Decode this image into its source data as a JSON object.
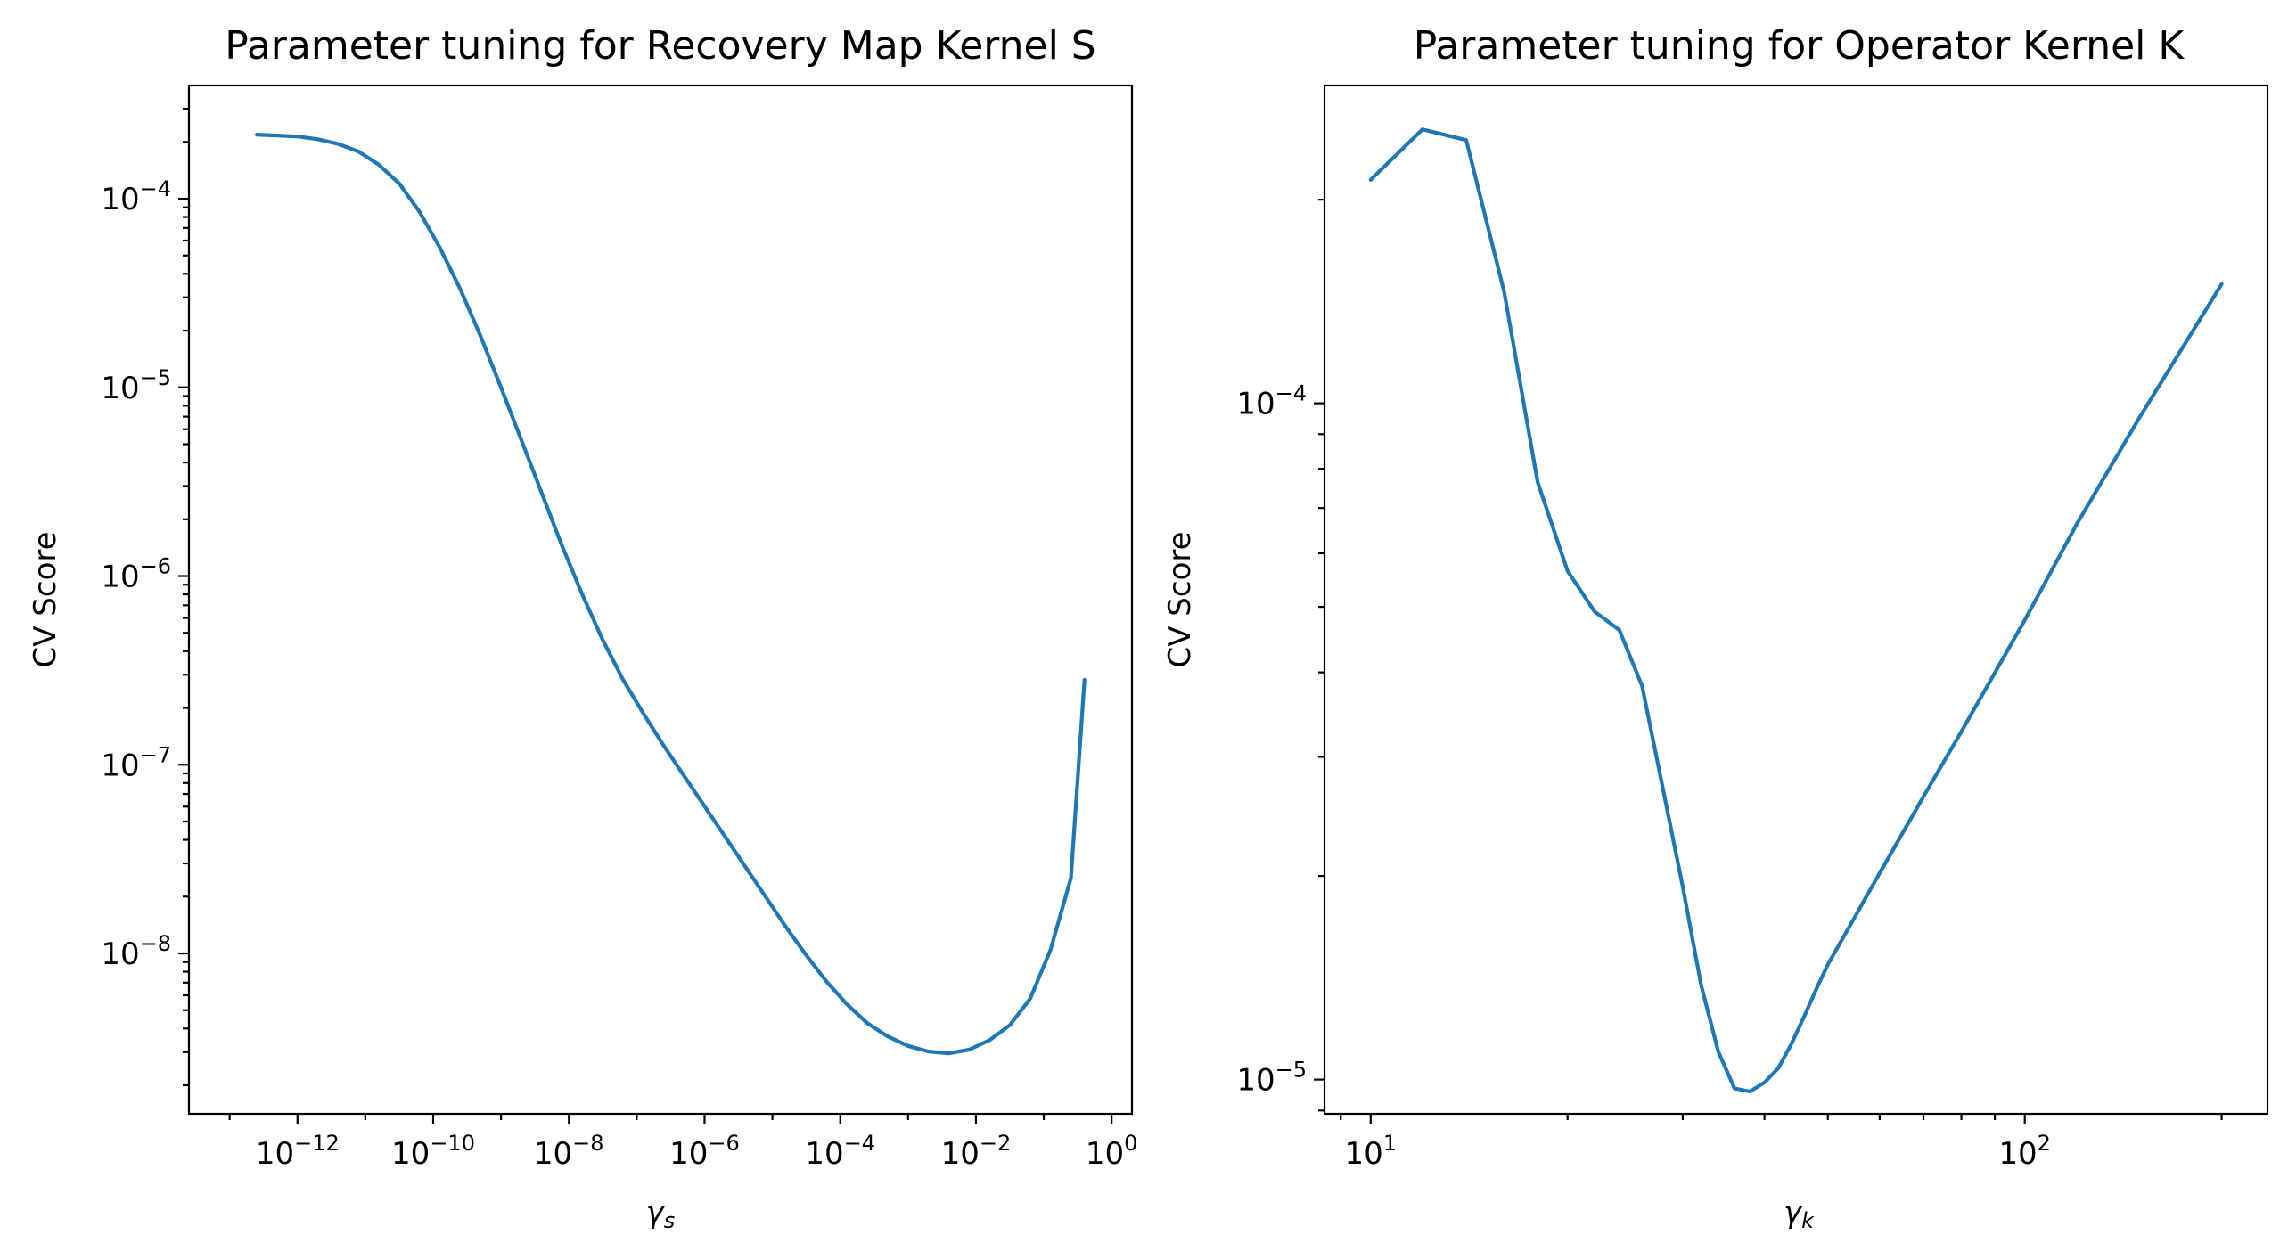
{
  "chart_data": [
    {
      "type": "line",
      "title": "Parameter tuning for Recovery Map Kernel S",
      "xlabel_base": "γ",
      "xlabel_sub": "s",
      "ylabel": "CV Score",
      "xscale": "log",
      "yscale": "log",
      "xlim_log10": [
        -13.6,
        0.3
      ],
      "ylim_log10": [
        -8.85,
        -3.4
      ],
      "xticks": [
        {
          "exp": -12,
          "base": "10",
          "sup": "−12"
        },
        {
          "exp": -10,
          "base": "10",
          "sup": "−10"
        },
        {
          "exp": -8,
          "base": "10",
          "sup": "−8"
        },
        {
          "exp": -6,
          "base": "10",
          "sup": "−6"
        },
        {
          "exp": -4,
          "base": "10",
          "sup": "−4"
        },
        {
          "exp": -2,
          "base": "10",
          "sup": "−2"
        },
        {
          "exp": 0,
          "base": "10",
          "sup": "0"
        }
      ],
      "yticks": [
        {
          "exp": -4,
          "base": "10",
          "sup": "−4"
        },
        {
          "exp": -5,
          "base": "10",
          "sup": "−5"
        },
        {
          "exp": -6,
          "base": "10",
          "sup": "−6"
        },
        {
          "exp": -7,
          "base": "10",
          "sup": "−7"
        },
        {
          "exp": -8,
          "base": "10",
          "sup": "−8"
        }
      ],
      "series": [
        {
          "name": "CV Score",
          "color": "#1f77b4",
          "x_log10": [
            -12.6,
            -12.3,
            -12.0,
            -11.7,
            -11.4,
            -11.1,
            -10.8,
            -10.5,
            -10.2,
            -9.9,
            -9.6,
            -9.3,
            -9.0,
            -8.7,
            -8.4,
            -8.1,
            -7.8,
            -7.5,
            -7.2,
            -6.9,
            -6.6,
            -6.3,
            -6.0,
            -5.7,
            -5.4,
            -5.1,
            -4.8,
            -4.5,
            -4.2,
            -3.9,
            -3.6,
            -3.3,
            -3.0,
            -2.7,
            -2.4,
            -2.1,
            -1.8,
            -1.5,
            -1.2,
            -0.9,
            -0.6,
            -0.4
          ],
          "y_log10": [
            -3.66,
            -3.665,
            -3.67,
            -3.685,
            -3.71,
            -3.75,
            -3.82,
            -3.92,
            -4.07,
            -4.26,
            -4.48,
            -4.73,
            -5.0,
            -5.28,
            -5.56,
            -5.84,
            -6.1,
            -6.34,
            -6.55,
            -6.73,
            -6.9,
            -7.06,
            -7.22,
            -7.38,
            -7.54,
            -7.7,
            -7.86,
            -8.01,
            -8.15,
            -8.27,
            -8.37,
            -8.44,
            -8.49,
            -8.52,
            -8.53,
            -8.51,
            -8.46,
            -8.38,
            -8.24,
            -7.98,
            -7.6,
            -6.55
          ],
          "y_min": 2.9e-09,
          "x_at_min": 0.0016
        }
      ]
    },
    {
      "type": "line",
      "title": "Parameter tuning for Operator Kernel K",
      "xlabel_base": "γ",
      "xlabel_sub": "k",
      "ylabel": "CV Score",
      "xscale": "log",
      "yscale": "log",
      "xlim": [
        8.5,
        235
      ],
      "ylim": [
        8.9e-06,
        0.000295
      ],
      "xticks": [
        {
          "value": 10,
          "base": "10",
          "sup": "1"
        },
        {
          "value": 100,
          "base": "10",
          "sup": "2"
        }
      ],
      "yticks": [
        {
          "value": 0.0001,
          "base": "10",
          "sup": "−4"
        },
        {
          "value": 1e-05,
          "base": "10",
          "sup": "−5"
        }
      ],
      "series": [
        {
          "name": "CV Score",
          "color": "#1f77b4",
          "x": [
            10,
            12,
            14,
            16,
            18,
            20,
            22,
            24,
            26,
            28,
            30,
            32,
            34,
            36,
            38,
            40,
            42,
            44,
            46,
            48,
            50,
            55,
            60,
            70,
            80,
            100,
            120,
            150,
            200
          ],
          "y": [
            0.000214,
            0.000254,
            0.000245,
            0.000146,
            7.65e-05,
            5.65e-05,
            4.92e-05,
            4.62e-05,
            3.82e-05,
            2.68e-05,
            1.93e-05,
            1.38e-05,
            1.1e-05,
            9.7e-06,
            9.6e-06,
            9.9e-06,
            1.04e-05,
            1.13e-05,
            1.24e-05,
            1.36e-05,
            1.48e-05,
            1.74e-05,
            2.02e-05,
            2.62e-05,
            3.27e-05,
            4.78e-05,
            6.62e-05,
            9.55e-05,
            0.00015
          ]
        }
      ]
    }
  ]
}
